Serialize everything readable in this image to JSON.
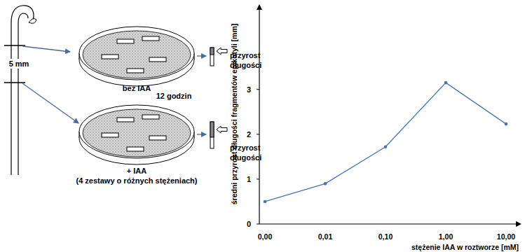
{
  "chart_data": {
    "type": "line",
    "categories": [
      "0,00",
      "0,01",
      "0,10",
      "1,00",
      "10,00"
    ],
    "values": [
      0.5,
      0.9,
      1.72,
      3.15,
      2.23
    ],
    "x_label": "stężenie IAA w roztworze [mM]",
    "y_label": "średni przyrost długości fragmentów epikotyli [mm]",
    "ylim": [
      0,
      4.9
    ],
    "yticks": [
      0,
      1,
      2,
      3
    ],
    "color": "#4a72b8",
    "marker": "circle",
    "grid": false
  },
  "diagram": {
    "stem_label": "5 mm",
    "time_label": "12 godzin",
    "dishes": [
      {
        "label": "bez IAA",
        "result_label": [
          "przyrost",
          "długości"
        ]
      },
      {
        "label": "+ IAA",
        "sublabel": "(4 zestawy o różnych stężeniach)",
        "result_label": [
          "przyrost",
          "długości"
        ]
      }
    ]
  }
}
